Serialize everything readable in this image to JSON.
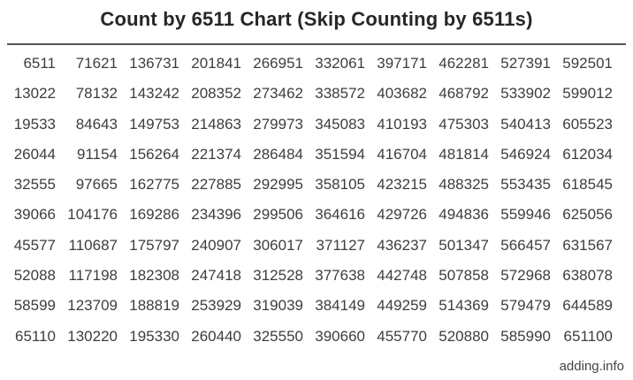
{
  "title": "Count by 6511 Chart (Skip Counting by 6511s)",
  "footer": {
    "site_label": "adding.info"
  },
  "colors": {
    "title_text": "#262626",
    "number_text": "#3d3d3d",
    "rule": "#555555",
    "background": "#ffffff"
  },
  "chart_data": {
    "type": "table",
    "title": "Count by 6511 Chart (Skip Counting by 6511s)",
    "step": 6511,
    "min_value": 6511,
    "max_value": 651100,
    "columns": 10,
    "rows_count": 10,
    "reading_order": "multiples of 6511 run down each column (1-10 in column 1, 11-20 in column 2, etc.)",
    "rows": [
      [
        6511,
        71621,
        136731,
        201841,
        266951,
        332061,
        397171,
        462281,
        527391,
        592501
      ],
      [
        13022,
        78132,
        143242,
        208352,
        273462,
        338572,
        403682,
        468792,
        533902,
        599012
      ],
      [
        19533,
        84643,
        149753,
        214863,
        279973,
        345083,
        410193,
        475303,
        540413,
        605523
      ],
      [
        26044,
        91154,
        156264,
        221374,
        286484,
        351594,
        416704,
        481814,
        546924,
        612034
      ],
      [
        32555,
        97665,
        162775,
        227885,
        292995,
        358105,
        423215,
        488325,
        553435,
        618545
      ],
      [
        39066,
        104176,
        169286,
        234396,
        299506,
        364616,
        429726,
        494836,
        559946,
        625056
      ],
      [
        45577,
        110687,
        175797,
        240907,
        306017,
        371127,
        436237,
        501347,
        566457,
        631567
      ],
      [
        52088,
        117198,
        182308,
        247418,
        312528,
        377638,
        442748,
        507858,
        572968,
        638078
      ],
      [
        58599,
        123709,
        188819,
        253929,
        319039,
        384149,
        449259,
        514369,
        579479,
        644589
      ],
      [
        65110,
        130220,
        195330,
        260440,
        325550,
        390660,
        455770,
        520880,
        585990,
        651100
      ]
    ]
  }
}
